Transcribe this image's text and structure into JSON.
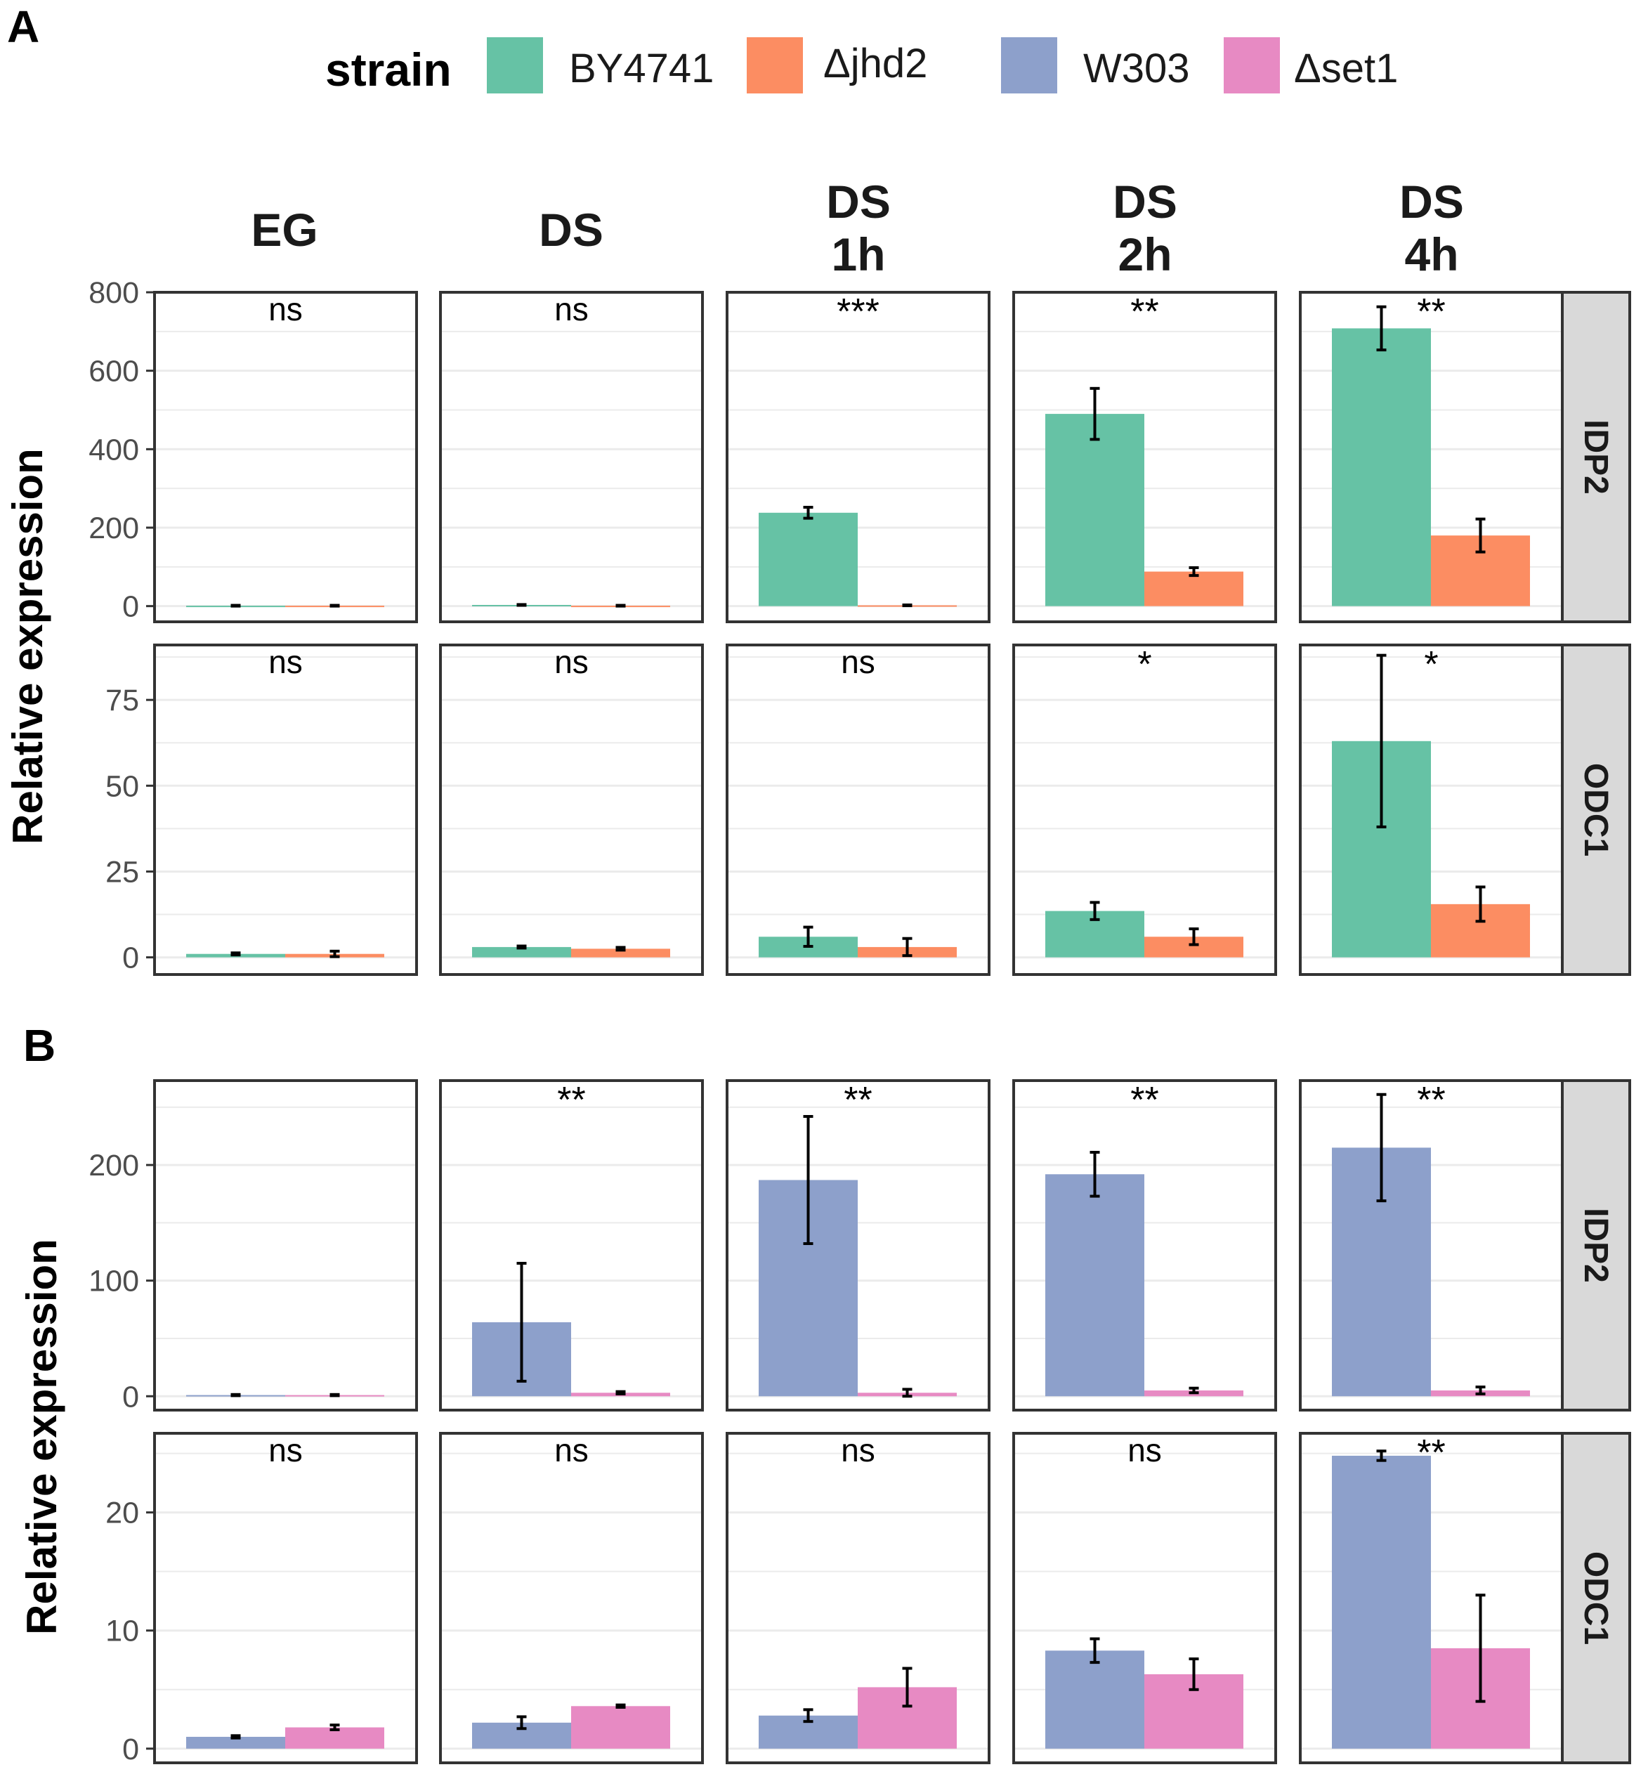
{
  "colors": {
    "BY4741": "#66c2a5",
    "jhd2": "#fc8d62",
    "W303": "#8da0cb",
    "set1": "#e78ac3",
    "panel_border": "#333333",
    "grid": "#ebebeb",
    "strip_fill": "#d9d9d9",
    "axis_text": "#4d4d4d"
  },
  "legend": {
    "title": "strain",
    "items": [
      {
        "key": "BY4741",
        "label": "BY4741"
      },
      {
        "key": "jhd2",
        "label": "Δjhd2"
      },
      {
        "key": "W303",
        "label": "W303"
      },
      {
        "key": "set1",
        "label": "Δset1"
      }
    ]
  },
  "columns": [
    {
      "lines": [
        "EG"
      ]
    },
    {
      "lines": [
        "DS"
      ]
    },
    {
      "lines": [
        "DS",
        "1h"
      ]
    },
    {
      "lines": [
        "DS",
        "2h"
      ]
    },
    {
      "lines": [
        "DS",
        "4h"
      ]
    }
  ],
  "chart_data": [
    {
      "label": "A",
      "type": "bar",
      "ylabel": "Relative expression",
      "series_keys": [
        "BY4741",
        "jhd2"
      ],
      "categories": [
        "EG",
        "DS",
        "DS 1h",
        "DS 2h",
        "DS 4h"
      ],
      "rows": [
        {
          "gene": "IDP2",
          "ylim": [
            -40,
            800
          ],
          "yticks": [
            0,
            200,
            400,
            600,
            800
          ],
          "values": [
            [
              1,
              1
            ],
            [
              3,
              1
            ],
            [
              238,
              2
            ],
            [
              490,
              88
            ],
            [
              708,
              180
            ]
          ],
          "errors": [
            [
              1,
              1
            ],
            [
              1,
              1
            ],
            [
              14,
              1
            ],
            [
              65,
              10
            ],
            [
              55,
              42
            ]
          ],
          "significance": [
            "ns",
            "ns",
            "***",
            "**",
            "**"
          ]
        },
        {
          "gene": "ODC1",
          "ylim": [
            -5,
            91
          ],
          "yticks": [
            0,
            25,
            50,
            75
          ],
          "values": [
            [
              1,
              1
            ],
            [
              3,
              2.5
            ],
            [
              6,
              3
            ],
            [
              13.5,
              6
            ],
            [
              63,
              15.5
            ]
          ],
          "errors": [
            [
              0.3,
              0.8
            ],
            [
              0.3,
              0.4
            ],
            [
              2.8,
              2.5
            ],
            [
              2.5,
              2.3
            ],
            [
              25,
              5
            ]
          ],
          "significance": [
            "ns",
            "ns",
            "ns",
            "*",
            "*"
          ]
        }
      ]
    },
    {
      "label": "B",
      "type": "bar",
      "ylabel": "Relative expression",
      "series_keys": [
        "W303",
        "set1"
      ],
      "categories": [
        "EG",
        "DS",
        "DS 1h",
        "DS 2h",
        "DS 4h"
      ],
      "rows": [
        {
          "gene": "IDP2",
          "ylim": [
            -12,
            273
          ],
          "yticks": [
            0,
            100,
            200
          ],
          "values": [
            [
              1,
              1
            ],
            [
              64,
              3
            ],
            [
              187,
              3
            ],
            [
              192,
              5
            ],
            [
              215,
              5
            ]
          ],
          "errors": [
            [
              0.5,
              0.5
            ],
            [
              51,
              1
            ],
            [
              55,
              3
            ],
            [
              19,
              2
            ],
            [
              46,
              3
            ]
          ],
          "significance": [
            "",
            "**",
            "**",
            "**",
            "**"
          ]
        },
        {
          "gene": "ODC1",
          "ylim": [
            -1.2,
            26.7
          ],
          "yticks": [
            0,
            10,
            20
          ],
          "values": [
            [
              1,
              1.8
            ],
            [
              2.2,
              3.6
            ],
            [
              2.8,
              5.2
            ],
            [
              8.3,
              6.3
            ],
            [
              24.8,
              8.5
            ]
          ],
          "errors": [
            [
              0.1,
              0.2
            ],
            [
              0.5,
              0.1
            ],
            [
              0.5,
              1.6
            ],
            [
              1.0,
              1.3
            ],
            [
              0.4,
              4.5
            ]
          ],
          "significance": [
            "ns",
            "ns",
            "ns",
            "ns",
            "**"
          ]
        }
      ]
    }
  ]
}
